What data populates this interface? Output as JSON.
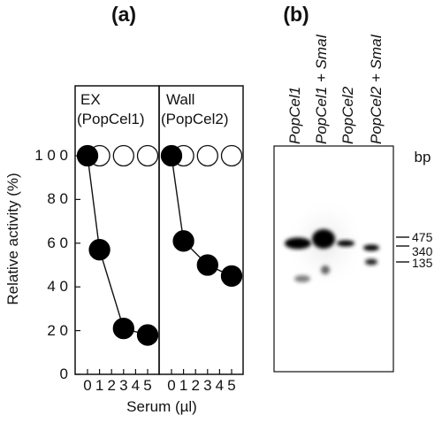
{
  "panel_a": {
    "label": "(a)",
    "ylabel": "Relative activity (%)",
    "xlabel": "Serum (µl)",
    "yticks": [
      "0",
      "2 0",
      "4 0",
      "6 0",
      "8 0",
      "1 0 0"
    ],
    "xticks": [
      "0",
      "1",
      "2",
      "3",
      "4",
      "5"
    ]
  },
  "panel_b": {
    "label": "(b)",
    "lanes": [
      "PopCel1",
      "PopCel1 + SmaI",
      "PopCel2",
      "PopCel2 + SmaI"
    ],
    "bp_label": "bp",
    "markers": [
      "475",
      "340",
      "135"
    ]
  },
  "chart_data": [
    {
      "type": "line",
      "title": "EX",
      "subtitle": "(PopCel1)",
      "xlabel": "Serum (µl)",
      "ylabel": "Relative activity (%)",
      "xlim": [
        -0.5,
        6
      ],
      "ylim": [
        0,
        100
      ],
      "xticks": [
        0,
        1,
        2,
        3,
        4,
        5
      ],
      "yticks": [
        0,
        20,
        40,
        60,
        80,
        100
      ],
      "grid": false,
      "series": [
        {
          "x": [
            0,
            1,
            3,
            5
          ],
          "y": [
            100,
            57,
            21,
            18
          ],
          "color": "#000000",
          "marker": "filled-circle",
          "line": true
        },
        {
          "x": [
            1,
            3,
            5
          ],
          "y": [
            100,
            100,
            100
          ],
          "color": "#ffffff",
          "marker": "open-circle",
          "line": false
        }
      ]
    },
    {
      "type": "line",
      "title": "Wall",
      "subtitle": "(PopCel2)",
      "xlabel": "Serum (µl)",
      "ylabel": "Relative activity (%)",
      "xlim": [
        -0.5,
        6
      ],
      "ylim": [
        0,
        100
      ],
      "xticks": [
        0,
        1,
        2,
        3,
        4,
        5
      ],
      "yticks": [
        0,
        20,
        40,
        60,
        80,
        100
      ],
      "grid": false,
      "series": [
        {
          "x": [
            0,
            1,
            3,
            5
          ],
          "y": [
            100,
            61,
            50,
            45
          ],
          "color": "#000000",
          "marker": "filled-circle",
          "line": true
        },
        {
          "x": [
            1,
            3,
            5
          ],
          "y": [
            100,
            100,
            100
          ],
          "color": "#ffffff",
          "marker": "open-circle",
          "line": false
        }
      ]
    }
  ]
}
